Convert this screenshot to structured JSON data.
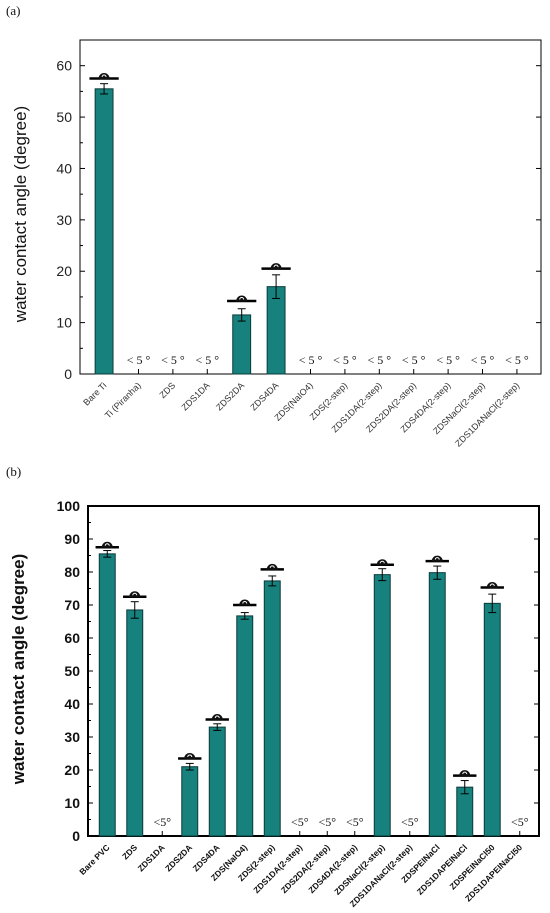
{
  "chart_data": [
    {
      "type": "bar",
      "panel_label": "(a)",
      "ylabel": "water contact angle (degree)",
      "ylim": [
        0,
        65
      ],
      "yticks": [
        0,
        10,
        20,
        30,
        40,
        50,
        60
      ],
      "bar_color": "#16817d",
      "categories": [
        "Bare Ti",
        "Ti (Piranha)",
        "ZDS",
        "ZDS1DA",
        "ZDS2DA",
        "ZDS4DA",
        "ZDS(NaIO4)",
        "ZDS(2-step)",
        "ZDS1DA(2-step)",
        "ZDS2DA(2-step)",
        "ZDS4DA(2-step)",
        "ZDSNaCl(2-step)",
        "ZDS1DANaCl(2-step)"
      ],
      "values": [
        55.5,
        null,
        null,
        null,
        11.5,
        17.0,
        null,
        null,
        null,
        null,
        null,
        null,
        null
      ],
      "errors": [
        1.0,
        null,
        null,
        null,
        1.2,
        2.3,
        null,
        null,
        null,
        null,
        null,
        null,
        null
      ],
      "droplet_marker": [
        57.5,
        null,
        null,
        null,
        14.2,
        20.5,
        null,
        null,
        null,
        null,
        null,
        null,
        null
      ],
      "below_detection_label": "< 5 °",
      "grid": false
    },
    {
      "type": "bar",
      "panel_label": "(b)",
      "ylabel": "water contact angle (degree)",
      "ylim": [
        0,
        100
      ],
      "yticks": [
        0,
        10,
        20,
        30,
        40,
        50,
        60,
        70,
        80,
        90,
        100
      ],
      "bar_color": "#16817d",
      "categories": [
        "Bare PVC",
        "ZDS",
        "ZDS1DA",
        "ZDS2DA",
        "ZDS4DA",
        "ZDS(NaIO4)",
        "ZDS(2-step)",
        "ZDS1DA(2-step)",
        "ZDS2DA(2-step)",
        "ZDS4DA(2-step)",
        "ZDSNaCl(2-step)",
        "ZDS1DANaCl(2-step)",
        "ZDSPEINaCl",
        "ZDS1DAPEINaCl",
        "ZDSPEINaCl50",
        "ZDS1DAPEINaCl50"
      ],
      "values": [
        85.5,
        68.5,
        null,
        21.0,
        33.0,
        66.7,
        77.3,
        null,
        null,
        null,
        79.2,
        null,
        79.8,
        14.8,
        70.5,
        null
      ],
      "errors": [
        1.0,
        2.5,
        null,
        1.0,
        1.0,
        1.0,
        1.5,
        null,
        null,
        null,
        1.8,
        null,
        2.0,
        2.0,
        2.8,
        null
      ],
      "droplet_marker": [
        87.5,
        72.5,
        null,
        23.5,
        35.3,
        70.0,
        80.8,
        null,
        null,
        null,
        82.2,
        null,
        83.3,
        18.3,
        75.3,
        null
      ],
      "below_detection_label": "<5°",
      "grid": false
    }
  ]
}
